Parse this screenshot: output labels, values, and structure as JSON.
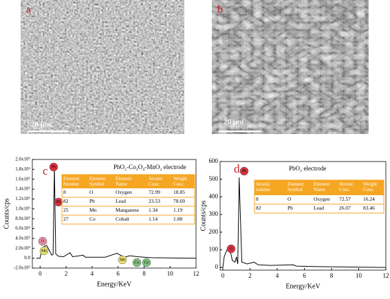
{
  "images": [
    {
      "label": "a",
      "scale_bar": "20 μm"
    },
    {
      "label": "b",
      "scale_bar": "20 μm"
    }
  ],
  "chart_data": [
    {
      "type": "line",
      "label": "c",
      "title": "PbO₂-Co₃O₄-MnO₂ electrode",
      "x_label": "Energy/KeV",
      "y_label": "Counts/cps",
      "color": "#000000",
      "x": [
        -0.3,
        0,
        0.1,
        0.25,
        0.5,
        0.7,
        0.9,
        1.0,
        1.1,
        1.2,
        1.4,
        1.8,
        2.3,
        2.5,
        3.3,
        3.5,
        5.0,
        5.9,
        6.5,
        6.9,
        7.5,
        8.5,
        10,
        12
      ],
      "y": [
        0,
        0,
        150000,
        230000,
        260000,
        160000,
        60000,
        80000,
        1850000,
        90000,
        40000,
        30000,
        110000,
        30000,
        60000,
        20000,
        20000,
        100000,
        20000,
        50000,
        30000,
        10000,
        5000,
        0
      ],
      "xlim": [
        -0.6,
        12
      ],
      "xticks": [
        0,
        2,
        4,
        6,
        8,
        10,
        12
      ],
      "ylim": [
        -200000,
        2000000
      ],
      "yticks": [
        {
          "value": -200000,
          "label": "-2.0x10⁵"
        },
        {
          "value": 0,
          "label": "0.0"
        },
        {
          "value": 200000,
          "label": "2.0x10⁵"
        },
        {
          "value": 400000,
          "label": "4.0x10⁵"
        },
        {
          "value": 600000,
          "label": "6.0x10⁵"
        },
        {
          "value": 800000,
          "label": "8.0x10⁵"
        },
        {
          "value": 1000000,
          "label": "1.0x10⁶"
        },
        {
          "value": 1200000,
          "label": "1.2x10⁶"
        },
        {
          "value": 1400000,
          "label": "1.4x10⁶"
        },
        {
          "value": 1600000,
          "label": "1.6x10⁶"
        },
        {
          "value": 1800000,
          "label": "1.8x10⁶"
        },
        {
          "value": 2000000,
          "label": "2.0x10⁶"
        }
      ],
      "annotations": [
        {
          "text": "Pb",
          "color": "#d9333f"
        },
        {
          "text": "Pb",
          "color": "#d9333f"
        },
        {
          "text": "O",
          "color": "#e58aa0"
        },
        {
          "text": "Mn",
          "color": "#e8e070"
        },
        {
          "text": "Mn",
          "color": "#e8e070"
        },
        {
          "text": "Co",
          "color": "#7fbf7f"
        },
        {
          "text": "Co",
          "color": "#7fbf7f"
        }
      ],
      "table": {
        "header": [
          "Element Number",
          "Element Symbol",
          "Element Name",
          "Atomic Conc.",
          "Weight Conc."
        ],
        "rows": [
          [
            8,
            "O",
            "Oxygen",
            72.99,
            18.85
          ],
          [
            82,
            "Pb",
            "Lead",
            23.53,
            78.69
          ],
          [
            25,
            "Mn",
            "Manganese",
            1.34,
            1.19
          ],
          [
            27,
            "Co",
            "Cobalt",
            1.14,
            1.08
          ]
        ]
      }
    },
    {
      "type": "line",
      "label": "d",
      "title": "PbO₂ electrode",
      "x_label": "Energy/KeV",
      "y_label": "Counts/cps",
      "color": "#000000",
      "x": [
        -0.2,
        0,
        0.1,
        0.3,
        0.5,
        0.7,
        0.9,
        1.0,
        1.1,
        1.2,
        1.4,
        1.8,
        2.3,
        2.6,
        3.5,
        5.2,
        5.4,
        7,
        9,
        12
      ],
      "y": [
        0,
        0,
        60,
        100,
        110,
        40,
        30,
        60,
        20,
        510,
        30,
        20,
        30,
        15,
        12,
        15,
        8,
        5,
        3,
        0
      ],
      "xlim": [
        -0.2,
        12
      ],
      "xticks": [
        0,
        2,
        4,
        6,
        8,
        10,
        12
      ],
      "ylim": [
        -15,
        600
      ],
      "yticks": [
        0,
        100,
        200,
        300,
        400,
        500,
        600
      ],
      "annotations": [
        {
          "text": "Pb",
          "color": "#d9333f"
        },
        {
          "text": "O",
          "color": "#d9333f"
        }
      ],
      "table": {
        "header": [
          "Atomic number",
          "Element Symbol",
          "Element Name",
          "Atomic Conc.",
          "Weight Conc."
        ],
        "rows": [
          [
            8,
            "O",
            "Oxygen",
            72.57,
            16.24
          ],
          [
            82,
            "Pb",
            "Lead",
            26.07,
            83.46
          ]
        ]
      }
    }
  ]
}
